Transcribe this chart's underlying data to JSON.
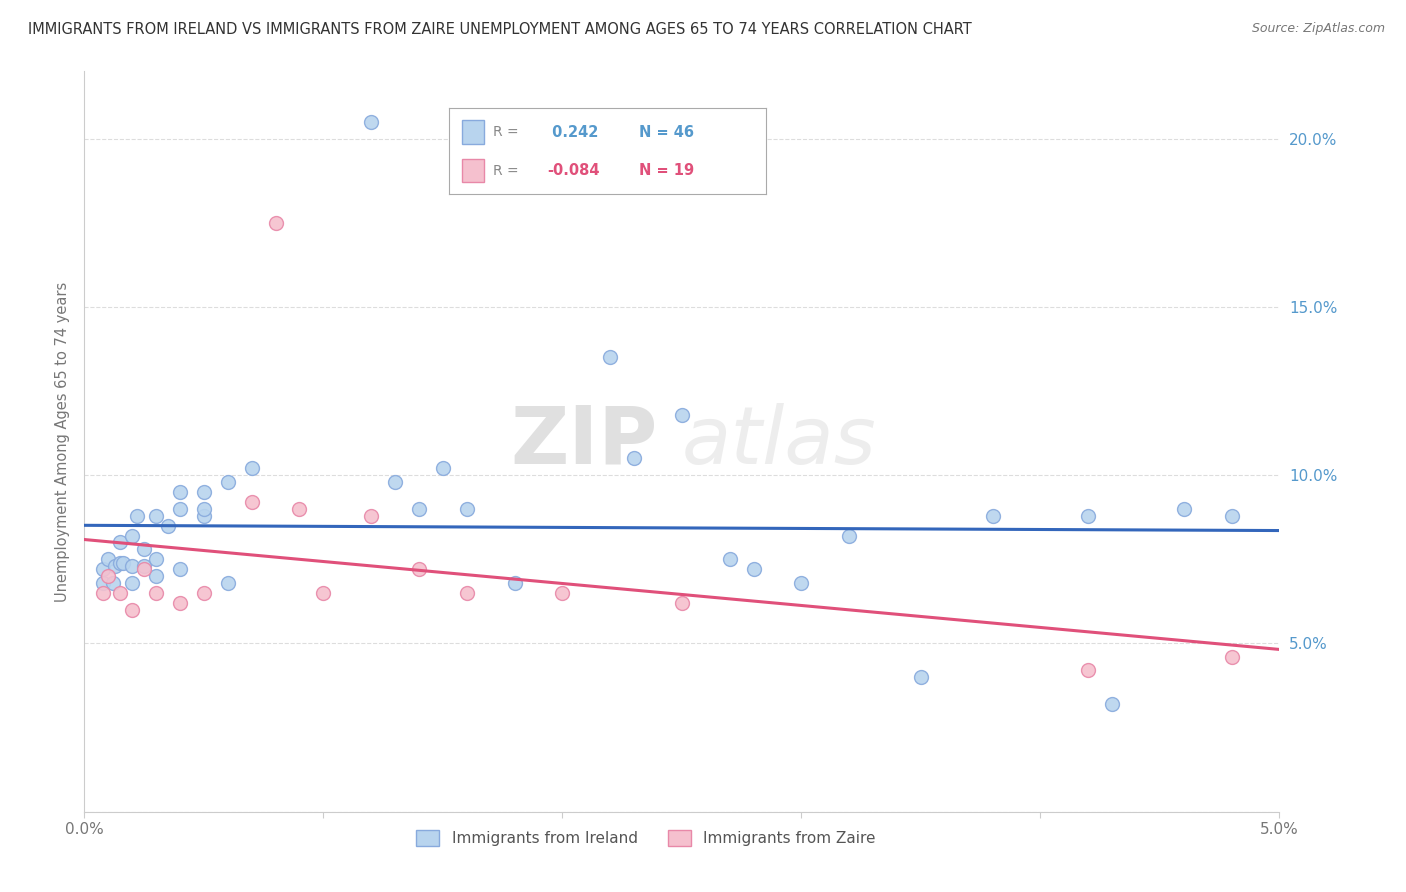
{
  "title": "IMMIGRANTS FROM IRELAND VS IMMIGRANTS FROM ZAIRE UNEMPLOYMENT AMONG AGES 65 TO 74 YEARS CORRELATION CHART",
  "source": "Source: ZipAtlas.com",
  "ylabel": "Unemployment Among Ages 65 to 74 years",
  "legend_label1": "Immigrants from Ireland",
  "legend_label2": "Immigrants from Zaire",
  "R1": 0.242,
  "N1": 46,
  "R2": -0.084,
  "N2": 19,
  "color_ireland": "#b8d4ee",
  "color_zaire": "#f5c0ce",
  "line_color_ireland": "#3366bb",
  "line_color_zaire": "#e0507a",
  "tick_color": "#5599cc",
  "xlim": [
    0.0,
    0.05
  ],
  "ylim": [
    0.0,
    0.22
  ],
  "x_ticks": [
    0.0,
    0.01,
    0.02,
    0.03,
    0.04,
    0.05
  ],
  "x_tick_labels": [
    "0.0%",
    "",
    "",
    "",
    "",
    "5.0%"
  ],
  "y_ticks": [
    0.0,
    0.05,
    0.1,
    0.15,
    0.2
  ],
  "y_tick_labels": [
    "",
    "5.0%",
    "10.0%",
    "15.0%",
    "20.0%"
  ],
  "ireland_x": [
    0.0008,
    0.0008,
    0.001,
    0.0012,
    0.0013,
    0.0015,
    0.0015,
    0.0016,
    0.002,
    0.002,
    0.002,
    0.0022,
    0.0025,
    0.0025,
    0.003,
    0.003,
    0.003,
    0.0035,
    0.004,
    0.004,
    0.004,
    0.005,
    0.005,
    0.005,
    0.006,
    0.006,
    0.007,
    0.012,
    0.013,
    0.014,
    0.015,
    0.016,
    0.018,
    0.022,
    0.023,
    0.027,
    0.025,
    0.028,
    0.03,
    0.032,
    0.035,
    0.038,
    0.042,
    0.043,
    0.046,
    0.048
  ],
  "ireland_y": [
    0.068,
    0.072,
    0.075,
    0.068,
    0.073,
    0.074,
    0.08,
    0.074,
    0.068,
    0.073,
    0.082,
    0.088,
    0.073,
    0.078,
    0.07,
    0.088,
    0.075,
    0.085,
    0.072,
    0.09,
    0.095,
    0.088,
    0.09,
    0.095,
    0.068,
    0.098,
    0.102,
    0.205,
    0.098,
    0.09,
    0.102,
    0.09,
    0.068,
    0.135,
    0.105,
    0.075,
    0.118,
    0.072,
    0.068,
    0.082,
    0.04,
    0.088,
    0.088,
    0.032,
    0.09,
    0.088
  ],
  "zaire_x": [
    0.0008,
    0.001,
    0.0015,
    0.002,
    0.0025,
    0.003,
    0.004,
    0.005,
    0.007,
    0.008,
    0.009,
    0.01,
    0.012,
    0.014,
    0.016,
    0.02,
    0.025,
    0.042,
    0.048
  ],
  "zaire_y": [
    0.065,
    0.07,
    0.065,
    0.06,
    0.072,
    0.065,
    0.062,
    0.065,
    0.092,
    0.175,
    0.09,
    0.065,
    0.088,
    0.072,
    0.065,
    0.065,
    0.062,
    0.042,
    0.046
  ],
  "watermark_zip": "ZIP",
  "watermark_atlas": "atlas",
  "background_color": "#ffffff",
  "grid_color": "#dddddd",
  "marker_size": 100,
  "marker_edge_color_ireland": "#88aadd",
  "marker_edge_color_zaire": "#e888a8"
}
